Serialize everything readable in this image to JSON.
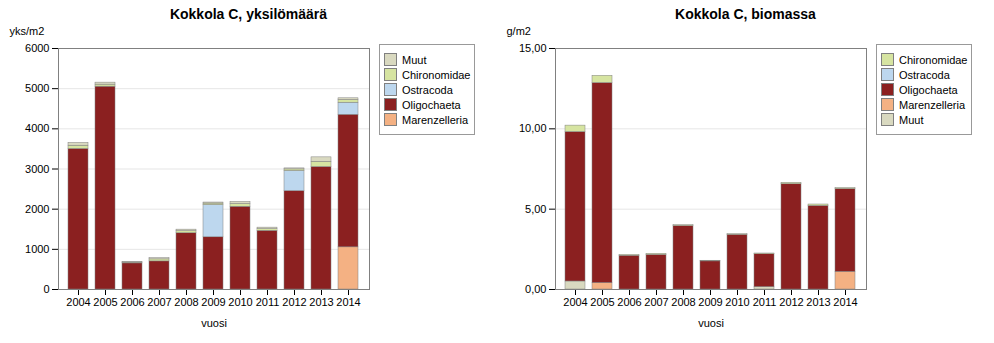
{
  "chart_data": [
    {
      "type": "bar",
      "stacked": true,
      "title": "Kokkola C, yksilömäärä",
      "x_label": "vuosi",
      "y_label": "yks/m2",
      "categories": [
        "2004",
        "2005",
        "2006",
        "2007",
        "2008",
        "2009",
        "2010",
        "2011",
        "2012",
        "2013",
        "2014"
      ],
      "series": [
        {
          "name": "Marenzelleria",
          "color": "#F4B183",
          "values": [
            0,
            0,
            0,
            0,
            0,
            0,
            0,
            0,
            0,
            0,
            1050
          ]
        },
        {
          "name": "Oligochaeta",
          "color": "#8B2020",
          "values": [
            3500,
            5050,
            650,
            700,
            1400,
            1300,
            2060,
            1460,
            2450,
            3050,
            3300
          ]
        },
        {
          "name": "Ostracoda",
          "color": "#BDD7EE",
          "values": [
            0,
            0,
            0,
            0,
            0,
            800,
            0,
            0,
            500,
            0,
            300
          ]
        },
        {
          "name": "Chironomidae",
          "color": "#D6E4A1",
          "values": [
            80,
            50,
            20,
            50,
            50,
            40,
            70,
            40,
            40,
            130,
            70
          ]
        },
        {
          "name": "Muut",
          "color": "#D9D9C0",
          "values": [
            70,
            50,
            15,
            30,
            40,
            25,
            50,
            40,
            25,
            110,
            40
          ]
        }
      ],
      "ylim": [
        0,
        6000
      ],
      "yticks": [
        0,
        1000,
        2000,
        3000,
        4000,
        5000,
        6000
      ],
      "grid": true,
      "legend": "upper right"
    },
    {
      "type": "bar",
      "stacked": true,
      "title": "Kokkola C, biomassa",
      "x_label": "vuosi",
      "y_label": "g/m2",
      "categories": [
        "2004",
        "2005",
        "2006",
        "2007",
        "2008",
        "2009",
        "2010",
        "2011",
        "2012",
        "2013",
        "2014"
      ],
      "series": [
        {
          "name": "Muut",
          "color": "#D9D9C0",
          "values": [
            0.5,
            0,
            0,
            0,
            0,
            0,
            0,
            0.15,
            0,
            0,
            0
          ]
        },
        {
          "name": "Marenzelleria",
          "color": "#F4B183",
          "values": [
            0,
            0.4,
            0,
            0,
            0,
            0,
            0,
            0,
            0,
            0,
            1.1
          ]
        },
        {
          "name": "Oligochaeta",
          "color": "#8B2020",
          "values": [
            9.3,
            12.45,
            2.1,
            2.15,
            3.95,
            1.75,
            3.4,
            2.05,
            6.55,
            5.2,
            5.15
          ]
        },
        {
          "name": "Ostracoda",
          "color": "#BDD7EE",
          "values": [
            0,
            0,
            0,
            0,
            0,
            0,
            0,
            0,
            0,
            0,
            0
          ]
        },
        {
          "name": "Chironomidae",
          "color": "#D6E4A1",
          "values": [
            0.4,
            0.45,
            0.05,
            0.07,
            0.05,
            0.04,
            0.04,
            0.04,
            0.09,
            0.09,
            0.06
          ]
        }
      ],
      "ylim": [
        0,
        15
      ],
      "yticks": [
        {
          "value": 0,
          "label": "0,00"
        },
        {
          "value": 5,
          "label": "5,00"
        },
        {
          "value": 10,
          "label": "10,00"
        },
        {
          "value": 15,
          "label": "15,00"
        }
      ],
      "grid": true,
      "legend": "upper right"
    }
  ]
}
